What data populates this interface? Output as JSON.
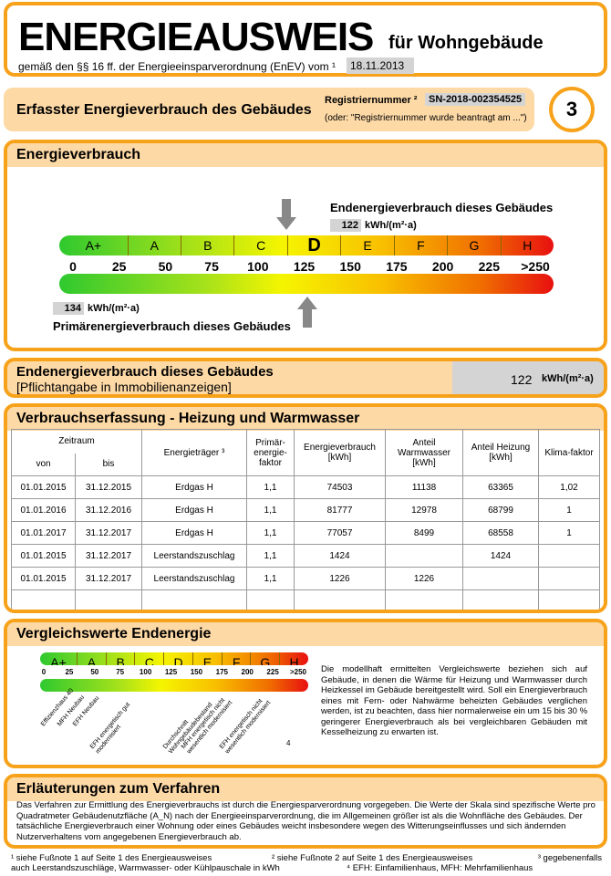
{
  "header": {
    "title": "ENERGIEAUSWEIS",
    "subtitle": "für Wohngebäude",
    "legal": "gemäß den §§ 16 ff. der Energieeinsparverordnung (EnEV) vom ¹",
    "date": "18.11.2013"
  },
  "section_bar": {
    "title": "Erfasster Energieverbrauch des Gebäudes",
    "reg_label": "Registriernummer ²",
    "reg_number": "SN-2018-002354525",
    "reg_note": "(oder: \"Registriernummer wurde beantragt am ...\")",
    "page": "3"
  },
  "energy": {
    "title": "Energieverbrauch",
    "end_label": "Endenergieverbrauch dieses Gebäudes",
    "end_value": "122",
    "unit": "kWh/(m²·a)",
    "primary_label": "Primärenergieverbrauch dieses Gebäudes",
    "primary_value": "134",
    "classes": [
      "A+",
      "A",
      "B",
      "C",
      "D",
      "E",
      "F",
      "G",
      "H"
    ],
    "ticks": [
      "0",
      "25",
      "50",
      "75",
      "100",
      "125",
      "150",
      "175",
      "200",
      "225",
      ">250"
    ],
    "current_class": "D",
    "end_numeric": 122,
    "primary_numeric": 134
  },
  "end_box": {
    "title": "Endenergieverbrauch dieses Gebäudes",
    "subtitle": "[Pflichtangabe in Immobilienanzeigen]",
    "value": "122",
    "unit": "kWh/(m²·a)"
  },
  "table": {
    "title": "Verbrauchserfassung - Heizung und Warmwasser",
    "headers": {
      "zeitraum": "Zeitraum",
      "von": "von",
      "bis": "bis",
      "traeger": "Energieträger ³",
      "pef": "Primär-energie-faktor",
      "verbrauch": "Energieverbrauch [kWh]",
      "ww": "Anteil Warmwasser [kWh]",
      "heizung": "Anteil Heizung [kWh]",
      "klima": "Klima-faktor"
    },
    "rows": [
      [
        "01.01.2015",
        "31.12.2015",
        "Erdgas H",
        "1,1",
        "74503",
        "11138",
        "63365",
        "1,02"
      ],
      [
        "01.01.2016",
        "31.12.2016",
        "Erdgas H",
        "1,1",
        "81777",
        "12978",
        "68799",
        "1"
      ],
      [
        "01.01.2017",
        "31.12.2017",
        "Erdgas H",
        "1,1",
        "77057",
        "8499",
        "68558",
        "1"
      ],
      [
        "01.01.2015",
        "31.12.2017",
        "Leerstandszuschlag",
        "1,1",
        "1424",
        "",
        "1424",
        ""
      ],
      [
        "01.01.2015",
        "31.12.2017",
        "Leerstandszuschlag",
        "1,1",
        "1226",
        "1226",
        "",
        ""
      ],
      [
        "",
        "",
        "",
        "",
        "",
        "",
        "",
        ""
      ]
    ]
  },
  "compare": {
    "title": "Vergleichswerte Endenergie",
    "classes": [
      "A+",
      "A",
      "B",
      "C",
      "D",
      "E",
      "F",
      "G",
      "H"
    ],
    "ticks": [
      "0",
      "25",
      "50",
      "75",
      "100",
      "125",
      "150",
      "175",
      "200",
      "225",
      ">250"
    ],
    "labels": [
      "Effizienzhaus 40",
      "MFH Neubau",
      "EFH Neubau",
      "EFH energetisch gut modernisiert",
      "Durchschnitt Wohngebäudebestand",
      "MFH energetisch nicht wesentlich modernisiert",
      "EFH energetisch nicht wesentlich modernisiert"
    ],
    "footnote": "4",
    "text": "Die modellhaft ermittelten Vergleichswerte beziehen sich auf Gebäude, in denen die Wärme für Heizung und Warmwasser durch Heizkessel im Gebäude bereitgestellt wird. Soll ein Energieverbrauch eines mit Fern- oder Nahwärme beheizten Gebäudes verglichen werden, ist zu beachten, dass hier normalerweise ein um 15 bis 30 % geringerer Energieverbrauch als bei vergleichbaren Gebäuden mit Kesselheizung zu erwarten ist."
  },
  "explain": {
    "title": "Erläuterungen zum Verfahren",
    "text": "Das Verfahren zur Ermittlung des Energieverbrauchs ist durch die Energiesparverordnung vorgegeben. Die Werte der Skala sind spezifische Werte pro Quadratmeter Gebäudenutzfläche (A_N) nach der Energieeinsparverordnung, die im Allgemeinen größer ist als die Wohnfläche des Gebäudes. Der tatsächliche Energieverbrauch einer Wohnung oder eines Gebäudes weicht insbesondere wegen des Witterungseinflusses und sich ändernden Nutzerverhaltens vom angegebenen Energieverbrauch ab."
  },
  "footnotes": {
    "f1": "¹ siehe Fußnote 1 auf Seite 1 des Energieausweises",
    "f2": "² siehe Fußnote 2 auf Seite 1 des Energieausweises",
    "f3": "³ gegebenenfalls",
    "f3b": "auch Leerstandszuschläge, Warmwasser- oder Kühlpauschale in kWh",
    "f4": "⁴ EFH: Einfamilienhaus, MFH: Mehrfamilienhaus"
  }
}
